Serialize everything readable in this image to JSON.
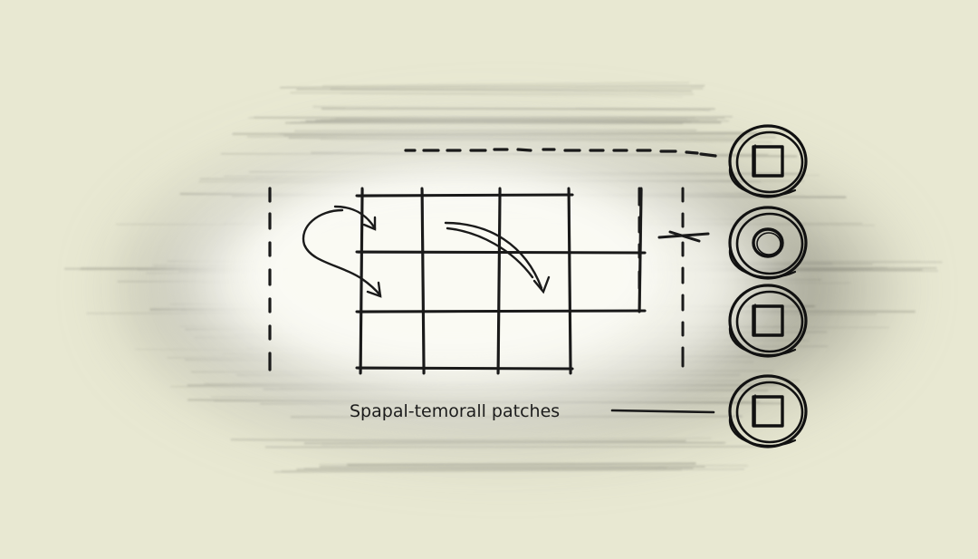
{
  "diagram": {
    "caption": "Spapal-temorall patches",
    "grid": {
      "rows": 4,
      "cols": 4
    },
    "tokens": [
      {
        "shape": "square"
      },
      {
        "shape": "circle"
      },
      {
        "shape": "square"
      },
      {
        "shape": "square"
      }
    ],
    "colors": {
      "background": "#e8e8d2",
      "ink": "#1a1a1a",
      "smudge": "#8e8e82",
      "glow": "#f6f6ee"
    }
  }
}
